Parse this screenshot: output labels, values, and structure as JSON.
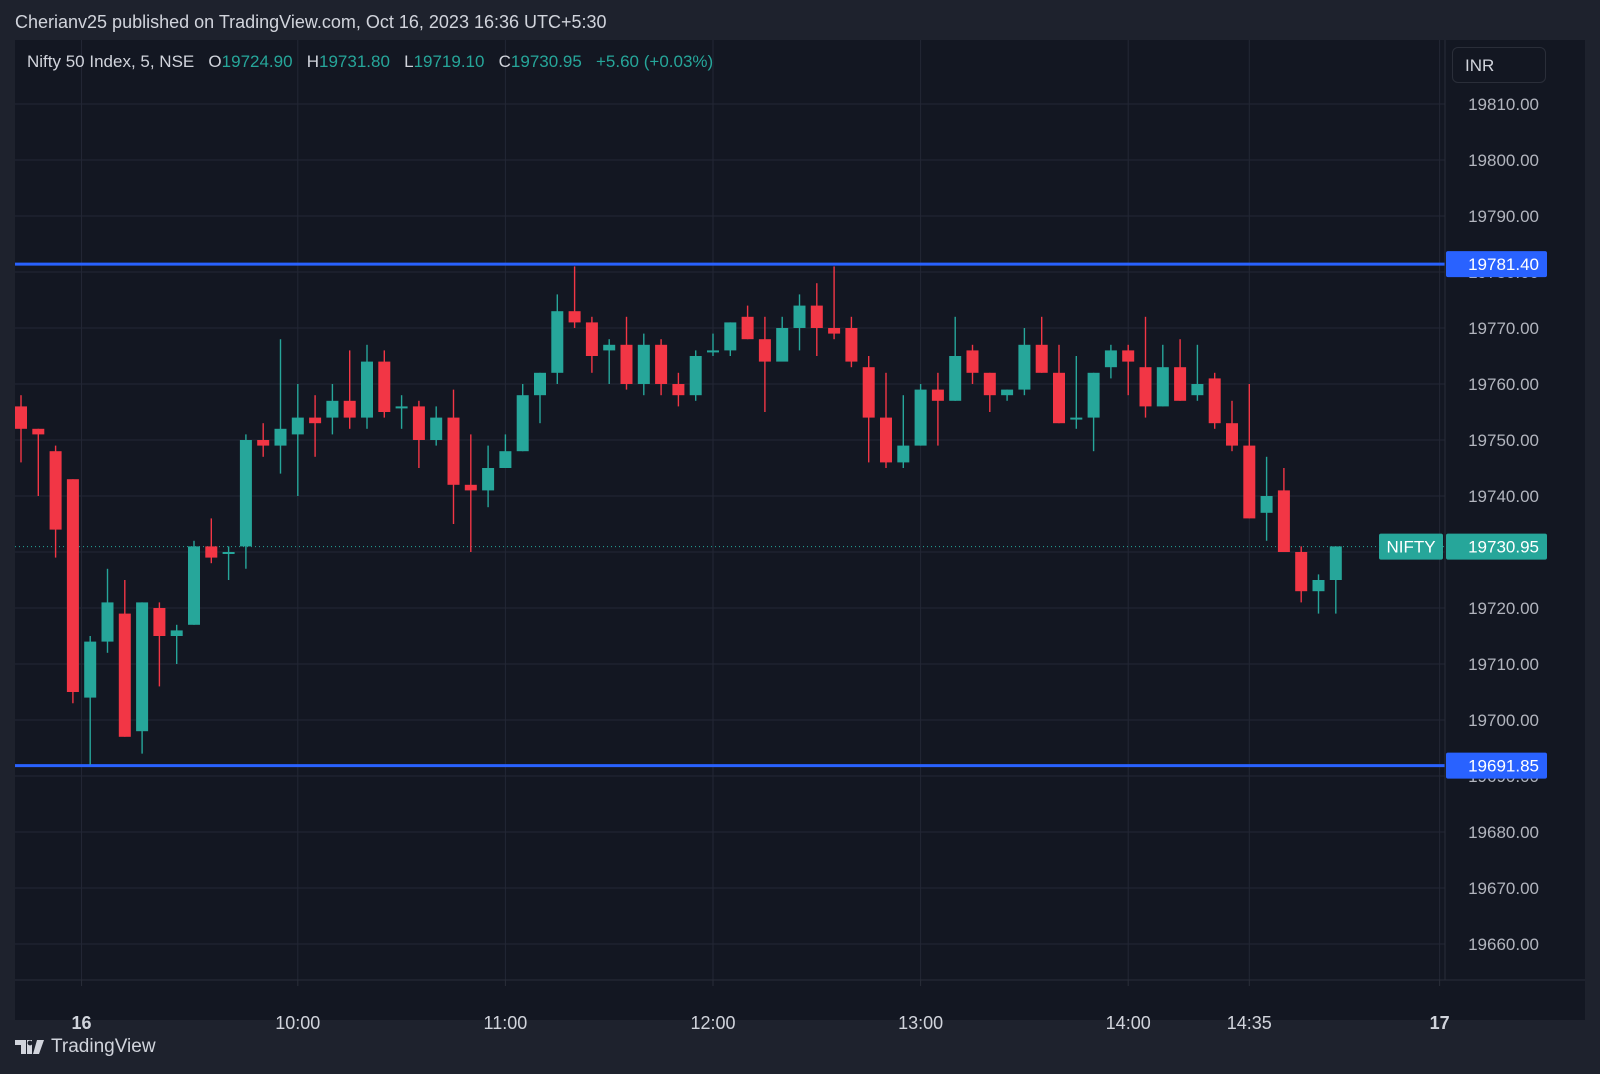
{
  "header": {
    "published_text": "Cherianv25 published on TradingView.com, Oct 16, 2023 16:36 UTC+5:30"
  },
  "legend": {
    "symbol": "Nifty 50 Index, 5, NSE",
    "open_label": "O",
    "open_value": "19724.90",
    "high_label": "H",
    "high_value": "19731.80",
    "low_label": "L",
    "low_value": "19719.10",
    "close_label": "C",
    "close_value": "19730.95",
    "change": "+5.60 (+0.03%)"
  },
  "currency_button": "INR",
  "footer": {
    "brand": "TradingView"
  },
  "colors": {
    "up": "#26a69a",
    "down": "#f23645",
    "level_line": "#2962ff",
    "grid": "#232735",
    "background": "#131722"
  },
  "chart_data": {
    "type": "candlestick",
    "ylim": [
      19655,
      19820
    ],
    "y_ticks": [
      "19810.00",
      "19800.00",
      "19790.00",
      "19780.00",
      "19770.00",
      "19760.00",
      "19750.00",
      "19740.00",
      "19730.00",
      "19720.00",
      "19710.00",
      "19700.00",
      "19690.00",
      "19680.00",
      "19670.00",
      "19660.00"
    ],
    "x_ticks": [
      {
        "label": "16",
        "bar": 3.5,
        "bold": true
      },
      {
        "label": "10:00",
        "bar": 16
      },
      {
        "label": "11:00",
        "bar": 28
      },
      {
        "label": "12:00",
        "bar": 40
      },
      {
        "label": "13:00",
        "bar": 52
      },
      {
        "label": "14:00",
        "bar": 64
      },
      {
        "label": "14:35",
        "bar": 71
      },
      {
        "label": "17",
        "bar": 82,
        "bold": true
      }
    ],
    "horizontal_levels": [
      {
        "value": 19781.4,
        "label": "19781.40"
      },
      {
        "value": 19691.85,
        "label": "19691.85"
      }
    ],
    "last_price": {
      "value": 19730.95,
      "label": "19730.95",
      "symbol": "NIFTY"
    },
    "candles": [
      [
        19756,
        19758,
        19746,
        19752
      ],
      [
        19752,
        19752,
        19740,
        19751
      ],
      [
        19748,
        19749,
        19729,
        19734
      ],
      [
        19743,
        19743,
        19703,
        19705
      ],
      [
        19704,
        19715,
        19692,
        19714
      ],
      [
        19714,
        19727,
        19712,
        19721
      ],
      [
        19719,
        19725,
        19697,
        19697
      ],
      [
        19698,
        19721,
        19694,
        19721
      ],
      [
        19720,
        19721,
        19706,
        19715
      ],
      [
        19715,
        19717,
        19710,
        19716
      ],
      [
        19717,
        19732,
        19717,
        19731
      ],
      [
        19731,
        19736,
        19728,
        19729
      ],
      [
        19730,
        19731,
        19725,
        19730
      ],
      [
        19731,
        19751,
        19727,
        19750
      ],
      [
        19750,
        19753,
        19747,
        19749
      ],
      [
        19749,
        19768,
        19744,
        19752
      ],
      [
        19751,
        19760,
        19740,
        19754
      ],
      [
        19754,
        19758,
        19747,
        19753
      ],
      [
        19754,
        19760,
        19751,
        19757
      ],
      [
        19757,
        19766,
        19752,
        19754
      ],
      [
        19754,
        19767,
        19752,
        19764
      ],
      [
        19764,
        19766,
        19754,
        19755
      ],
      [
        19756,
        19758,
        19752,
        19756
      ],
      [
        19756,
        19757,
        19745,
        19750
      ],
      [
        19750,
        19756,
        19749,
        19754
      ],
      [
        19754,
        19759,
        19735,
        19742
      ],
      [
        19742,
        19751,
        19730,
        19741
      ],
      [
        19741,
        19749,
        19738,
        19745
      ],
      [
        19745,
        19751,
        19745,
        19748
      ],
      [
        19748,
        19760,
        19748,
        19758
      ],
      [
        19758,
        19762,
        19753,
        19762
      ],
      [
        19762,
        19776,
        19760,
        19773
      ],
      [
        19773,
        19781,
        19770,
        19771
      ],
      [
        19771,
        19772,
        19762,
        19765
      ],
      [
        19766,
        19768,
        19760,
        19767
      ],
      [
        19767,
        19772,
        19759,
        19760
      ],
      [
        19760,
        19769,
        19758,
        19767
      ],
      [
        19767,
        19768,
        19758,
        19760
      ],
      [
        19760,
        19762,
        19756,
        19758
      ],
      [
        19758,
        19766,
        19757,
        19765
      ],
      [
        19766,
        19769,
        19765,
        19766
      ],
      [
        19766,
        19771,
        19765,
        19771
      ],
      [
        19772,
        19774,
        19768,
        19768
      ],
      [
        19768,
        19772,
        19755,
        19764
      ],
      [
        19764,
        19772,
        19765,
        19770
      ],
      [
        19770,
        19776,
        19766,
        19774
      ],
      [
        19774,
        19778,
        19765,
        19770
      ],
      [
        19770,
        19781,
        19768,
        19769
      ],
      [
        19770,
        19772,
        19763,
        19764
      ],
      [
        19763,
        19765,
        19746,
        19754
      ],
      [
        19754,
        19762,
        19745,
        19746
      ],
      [
        19746,
        19758,
        19745,
        19749
      ],
      [
        19749,
        19760,
        19749,
        19759
      ],
      [
        19759,
        19762,
        19749,
        19757
      ],
      [
        19757,
        19772,
        19757,
        19765
      ],
      [
        19766,
        19767,
        19760,
        19762
      ],
      [
        19762,
        19762,
        19755,
        19758
      ],
      [
        19758,
        19759,
        19757,
        19759
      ],
      [
        19759,
        19770,
        19758,
        19767
      ],
      [
        19767,
        19772,
        19762,
        19762
      ],
      [
        19762,
        19767,
        19753,
        19753
      ],
      [
        19754,
        19765,
        19752,
        19754
      ],
      [
        19754,
        19762,
        19748,
        19762
      ],
      [
        19763,
        19767,
        19761,
        19766
      ],
      [
        19766,
        19767,
        19758,
        19764
      ],
      [
        19763,
        19772,
        19754,
        19756
      ],
      [
        19756,
        19767,
        19756,
        19763
      ],
      [
        19763,
        19768,
        19757,
        19757
      ],
      [
        19758,
        19767,
        19757,
        19760
      ],
      [
        19761,
        19762,
        19752,
        19753
      ],
      [
        19753,
        19757,
        19748,
        19749
      ],
      [
        19749,
        19760,
        19736,
        19736
      ],
      [
        19737,
        19747,
        19732,
        19740
      ],
      [
        19741,
        19745,
        19730,
        19730
      ],
      [
        19730,
        19731,
        19721,
        19723
      ],
      [
        19723,
        19726,
        19719,
        19725
      ],
      [
        19725,
        19731,
        19719,
        19731
      ]
    ]
  }
}
